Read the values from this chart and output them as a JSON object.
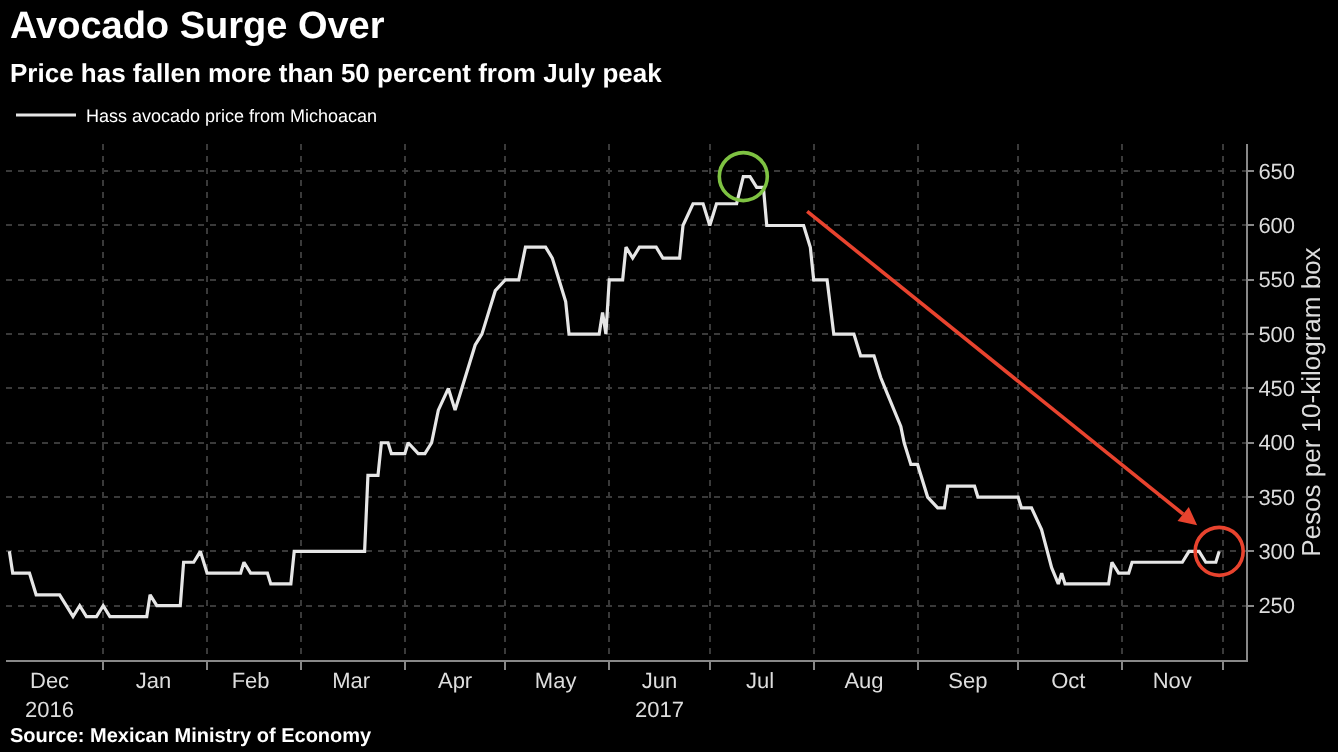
{
  "chart_data": {
    "type": "line",
    "title": "Avocado Surge Over",
    "subtitle": "Price has fallen more than 50 percent from July peak",
    "ylabel": "Pesos per 10-kilogram box",
    "annotations": [
      "Source: Mexican Ministry of Economy"
    ],
    "x": [
      "2016-12-04",
      "2016-12-05",
      "2016-12-10",
      "2016-12-12",
      "2016-12-19",
      "2016-12-21",
      "2016-12-23",
      "2016-12-25",
      "2016-12-27",
      "2016-12-30",
      "2017-01-01",
      "2017-01-03",
      "2017-01-14",
      "2017-01-15",
      "2017-01-17",
      "2017-01-24",
      "2017-01-25",
      "2017-01-28",
      "2017-01-30",
      "2017-02-01",
      "2017-02-11",
      "2017-02-12",
      "2017-02-14",
      "2017-02-19",
      "2017-02-20",
      "2017-02-26",
      "2017-02-27",
      "2017-03-20",
      "2017-03-21",
      "2017-03-24",
      "2017-03-25",
      "2017-03-27",
      "2017-03-28",
      "2017-04-01",
      "2017-04-02",
      "2017-04-05",
      "2017-04-07",
      "2017-04-09",
      "2017-04-11",
      "2017-04-14",
      "2017-04-16",
      "2017-04-18",
      "2017-04-20",
      "2017-04-22",
      "2017-04-24",
      "2017-04-26",
      "2017-04-28",
      "2017-05-01",
      "2017-05-05",
      "2017-05-07",
      "2017-05-13",
      "2017-05-15",
      "2017-05-17",
      "2017-05-19",
      "2017-05-20",
      "2017-05-29",
      "2017-05-30",
      "2017-05-31",
      "2017-06-01",
      "2017-06-05",
      "2017-06-06",
      "2017-06-08",
      "2017-06-10",
      "2017-06-15",
      "2017-06-17",
      "2017-06-22",
      "2017-06-23",
      "2017-06-26",
      "2017-06-29",
      "2017-07-01",
      "2017-07-03",
      "2017-07-09",
      "2017-07-11",
      "2017-07-13",
      "2017-07-15",
      "2017-07-17",
      "2017-07-18",
      "2017-07-29",
      "2017-07-31",
      "2017-08-01",
      "2017-08-05",
      "2017-08-07",
      "2017-08-13",
      "2017-08-15",
      "2017-08-19",
      "2017-08-21",
      "2017-08-23",
      "2017-08-27",
      "2017-08-28",
      "2017-08-30",
      "2017-09-01",
      "2017-09-04",
      "2017-09-07",
      "2017-09-09",
      "2017-09-10",
      "2017-09-18",
      "2017-09-19",
      "2017-10-01",
      "2017-10-02",
      "2017-10-05",
      "2017-10-08",
      "2017-10-11",
      "2017-10-13",
      "2017-10-14",
      "2017-10-15",
      "2017-10-28",
      "2017-10-29",
      "2017-10-31",
      "2017-11-03",
      "2017-11-04",
      "2017-11-19",
      "2017-11-21",
      "2017-11-24",
      "2017-11-26",
      "2017-11-29",
      "2017-11-30"
    ],
    "series": [
      {
        "name": "Hass avocado price from Michoacan",
        "color": "#e6e6e6",
        "values": [
          300,
          280,
          280,
          260,
          260,
          250,
          240,
          250,
          240,
          240,
          250,
          240,
          240,
          260,
          250,
          250,
          290,
          290,
          300,
          280,
          280,
          290,
          280,
          280,
          270,
          270,
          300,
          300,
          370,
          370,
          400,
          400,
          390,
          390,
          400,
          390,
          390,
          400,
          430,
          450,
          430,
          450,
          470,
          490,
          500,
          520,
          540,
          550,
          550,
          580,
          580,
          570,
          550,
          530,
          500,
          500,
          520,
          500,
          550,
          550,
          580,
          570,
          580,
          580,
          570,
          570,
          600,
          620,
          620,
          600,
          620,
          620,
          645,
          645,
          635,
          635,
          600,
          600,
          580,
          550,
          550,
          500,
          500,
          480,
          480,
          460,
          445,
          415,
          400,
          380,
          380,
          350,
          340,
          340,
          360,
          360,
          350,
          350,
          340,
          340,
          320,
          285,
          270,
          280,
          270,
          270,
          290,
          280,
          280,
          290,
          290,
          300,
          300,
          290,
          290,
          300
        ]
      }
    ],
    "xlim": [
      "2016-12-03",
      "2017-12-08"
    ],
    "xticks": [
      {
        "value": "2016-12-16",
        "label": "Dec\n2016"
      },
      {
        "value": "2017-01-16",
        "label": "Jan"
      },
      {
        "value": "2017-02-14",
        "label": "Feb"
      },
      {
        "value": "2017-03-16",
        "label": "Mar"
      },
      {
        "value": "2017-04-16",
        "label": "Apr"
      },
      {
        "value": "2017-05-16",
        "label": "May"
      },
      {
        "value": "2017-06-16",
        "label": "Jun\n2017"
      },
      {
        "value": "2017-07-16",
        "label": "Jul"
      },
      {
        "value": "2017-08-16",
        "label": "Aug"
      },
      {
        "value": "2017-09-16",
        "label": "Sep"
      },
      {
        "value": "2017-10-16",
        "label": "Oct"
      },
      {
        "value": "2017-11-16",
        "label": "Nov"
      }
    ],
    "ylim": [
      200,
      675
    ],
    "yticks": [
      250,
      300,
      350,
      400,
      450,
      500,
      550,
      600,
      650
    ],
    "grid": true,
    "legend": "top left",
    "marker": "none",
    "line_style": "solid"
  }
}
